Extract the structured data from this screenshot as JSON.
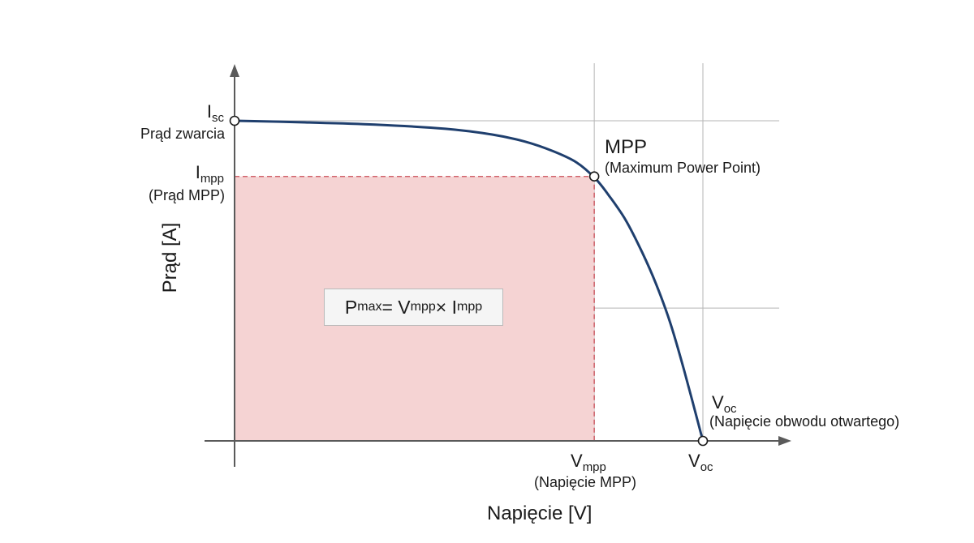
{
  "chart_data": {
    "type": "line",
    "xlabel": "Napięcie [V]",
    "ylabel": "Prąd [A]",
    "series": [
      {
        "x": [
          0,
          0.15,
          0.3,
          0.45,
          0.55,
          0.62,
          0.68,
          0.73,
          0.77,
          0.8,
          0.835,
          0.87,
          0.9,
          0.93,
          0.96,
          1.0
        ],
        "y": [
          1.0,
          0.995,
          0.988,
          0.975,
          0.957,
          0.935,
          0.905,
          0.87,
          0.82,
          0.765,
          0.69,
          0.59,
          0.49,
          0.37,
          0.22,
          0.0
        ]
      }
    ],
    "points": {
      "isc": {
        "x": 0,
        "y": 1.0
      },
      "mpp": {
        "x": 0.768,
        "y": 0.826
      },
      "voc": {
        "x": 1.0,
        "y": 0.0
      }
    },
    "xlim": [
      0,
      1.0
    ],
    "ylim": [
      0,
      1.0
    ],
    "grid": true,
    "labels": {
      "isc_main": "I",
      "isc_sub": "sc",
      "isc_desc": "Prąd zwarcia",
      "impp_main": "I",
      "impp_sub": "mpp",
      "impp_desc": "(Prąd MPP)",
      "mpp_title": "MPP",
      "mpp_desc": "(Maximum Power Point)",
      "voc_main": "V",
      "voc_sub": "oc",
      "voc_desc": "(Napięcie obwodu otwartego)",
      "vmpp_main": "V",
      "vmpp_sub": "mpp",
      "vmpp_desc": "(Napięcie MPP)",
      "voc_axis_main": "V",
      "voc_axis_sub": "oc"
    },
    "formula": {
      "p": "P",
      "p_sub": "max",
      "eq": "= V",
      "v_sub": "mpp",
      "times": " × I",
      "i_sub": "mpp"
    },
    "colors": {
      "curve": "#1f3f6e",
      "area_fill": "#f5d3d3",
      "dashed": "#c94b55",
      "grid": "#b5b5b5",
      "axis": "#5a5a5a"
    }
  }
}
